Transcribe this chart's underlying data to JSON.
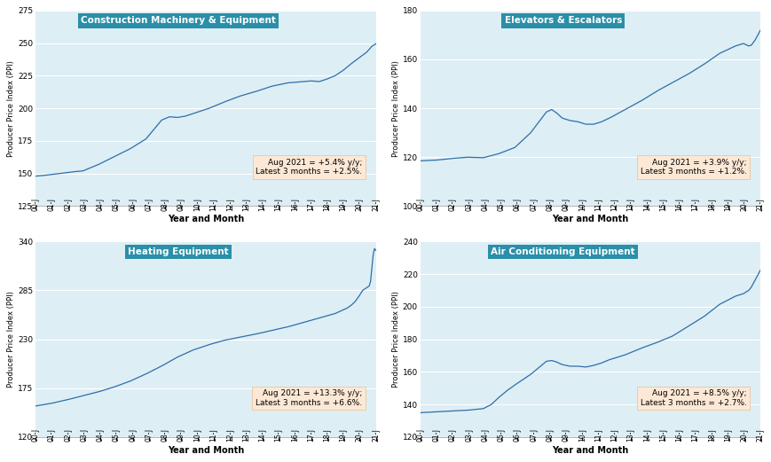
{
  "subplots": [
    {
      "title": "Construction Machinery & Equipment",
      "ylabel": "Producer Price Index (PPI)",
      "xlabel": "Year and Month",
      "ylim": [
        125,
        275
      ],
      "yticks": [
        125,
        150,
        175,
        200,
        225,
        250,
        275
      ],
      "annotation": "Aug 2021 = +5.4% y/y;\nLatest 3 months = +2.5%."
    },
    {
      "title": "Elevators & Escalators",
      "ylabel": "Producer Price Index (PPI)",
      "xlabel": "Year and Month",
      "ylim": [
        100,
        180
      ],
      "yticks": [
        100,
        120,
        140,
        160,
        180
      ],
      "annotation": "Aug 2021 = +3.9% y/y;\nLatest 3 months = +1.2%."
    },
    {
      "title": "Heating Equipment",
      "ylabel": "Producer Price Index (PPI)",
      "xlabel": "Year and Month",
      "ylim": [
        120,
        340
      ],
      "yticks": [
        120,
        175,
        230,
        285,
        340
      ],
      "annotation": "Aug 2021 = +13.3% y/y;\nLatest 3 months = +6.6%."
    },
    {
      "title": "Air Conditioning Equipment",
      "ylabel": "Producer Price Index (PPI)",
      "xlabel": "Year and Month",
      "ylim": [
        120,
        240
      ],
      "yticks": [
        120,
        140,
        160,
        180,
        200,
        220,
        240
      ],
      "annotation": "Aug 2021 = +8.5% y/y;\nLatest 3 months = +2.7%."
    }
  ],
  "line_color": "#2c6fa8",
  "bg_color": "#deeef5",
  "title_bg_color": "#2a8fa8",
  "title_text_color": "white",
  "annotation_bg_color": "#fce8d5",
  "annotation_edge_color": "#e8c8a0",
  "grid_color": "white",
  "xtick_labels": [
    "00-J",
    "01-J",
    "02-J",
    "03-J",
    "04-J",
    "05-J",
    "06-J",
    "07-J",
    "08-J",
    "09-J",
    "10-J",
    "11-J",
    "12-J",
    "13-J",
    "14-J",
    "15-J",
    "16-J",
    "17-J",
    "18-J",
    "19-J",
    "20-J",
    "21-J"
  ]
}
